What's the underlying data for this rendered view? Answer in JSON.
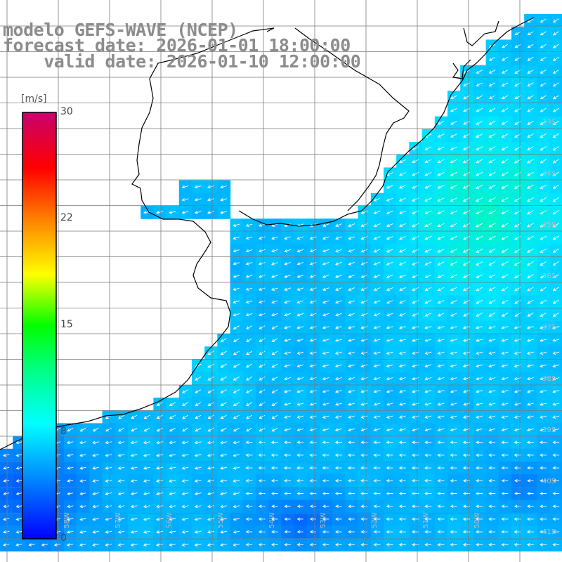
{
  "title": {
    "line1": "modelo GEFS-WAVE (NCEP)",
    "line2": "forecast date: 2026-01-01 18:00:00",
    "line3": "    valid date: 2026-01-10 12:00:00"
  },
  "colorbar": {
    "unit": "[m/s]",
    "min": 0,
    "max": 30,
    "ticks": [
      "30",
      "22",
      "15",
      "8",
      "0"
    ],
    "colors": [
      "#0000ff",
      "#00a0ff",
      "#00ffff",
      "#00ff80",
      "#00ff00",
      "#ffff00",
      "#ff8000",
      "#ff0000",
      "#c8006e"
    ]
  },
  "map": {
    "variable": "wind speed and direction",
    "lat_labels": [
      "33S",
      "34S",
      "35S",
      "36S",
      "37S",
      "38S",
      "39S",
      "40S",
      "41S"
    ],
    "lon_labels": [
      "58W",
      "57W",
      "56W",
      "55W",
      "54W",
      "53W",
      "52W",
      "51W",
      "50W"
    ],
    "land_color": "#ffffff",
    "coast_color": "#000000",
    "grid_color": "#808080",
    "arrow_color": "#ffffff"
  }
}
